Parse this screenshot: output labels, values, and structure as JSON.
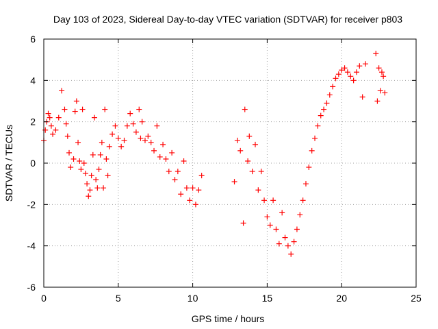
{
  "chart_data": {
    "type": "scatter",
    "title": "Day 103 of 2023, Sidereal Day-to-day VTEC variation (SDTVAR) for receiver p803",
    "xlabel": "GPS time / hours",
    "ylabel": "SDTVAR / TECUs",
    "xlim": [
      0,
      25
    ],
    "ylim": [
      -6,
      6
    ],
    "xticks": [
      0,
      5,
      10,
      15,
      20,
      25
    ],
    "yticks": [
      -6,
      -4,
      -2,
      0,
      2,
      4,
      6
    ],
    "grid": true,
    "marker": "+",
    "color": "#ff0000",
    "series": [
      {
        "name": "p803",
        "points": [
          [
            0.0,
            1.1
          ],
          [
            0.1,
            1.6
          ],
          [
            0.2,
            2.0
          ],
          [
            0.3,
            2.4
          ],
          [
            0.4,
            2.2
          ],
          [
            0.5,
            1.8
          ],
          [
            0.6,
            1.4
          ],
          [
            0.8,
            1.6
          ],
          [
            1.0,
            2.2
          ],
          [
            1.2,
            3.5
          ],
          [
            1.4,
            2.6
          ],
          [
            1.5,
            1.9
          ],
          [
            1.6,
            1.3
          ],
          [
            1.7,
            0.5
          ],
          [
            1.8,
            -0.2
          ],
          [
            2.0,
            0.2
          ],
          [
            2.1,
            2.5
          ],
          [
            2.2,
            3.0
          ],
          [
            2.3,
            1.0
          ],
          [
            2.4,
            0.1
          ],
          [
            2.5,
            -0.3
          ],
          [
            2.6,
            2.6
          ],
          [
            2.7,
            0.0
          ],
          [
            2.8,
            -0.5
          ],
          [
            2.9,
            -1.0
          ],
          [
            3.0,
            -1.6
          ],
          [
            3.1,
            -1.3
          ],
          [
            3.2,
            -0.6
          ],
          [
            3.3,
            0.4
          ],
          [
            3.4,
            2.2
          ],
          [
            3.5,
            -0.8
          ],
          [
            3.6,
            -1.2
          ],
          [
            3.7,
            -0.3
          ],
          [
            3.8,
            0.4
          ],
          [
            3.9,
            1.0
          ],
          [
            4.0,
            -1.2
          ],
          [
            4.1,
            2.6
          ],
          [
            4.2,
            0.2
          ],
          [
            4.3,
            -0.6
          ],
          [
            4.4,
            0.8
          ],
          [
            4.6,
            1.4
          ],
          [
            4.8,
            1.8
          ],
          [
            5.0,
            1.2
          ],
          [
            5.2,
            0.8
          ],
          [
            5.4,
            1.1
          ],
          [
            5.6,
            1.8
          ],
          [
            5.8,
            2.4
          ],
          [
            6.0,
            1.9
          ],
          [
            6.2,
            1.5
          ],
          [
            6.4,
            2.6
          ],
          [
            6.5,
            1.2
          ],
          [
            6.6,
            2.0
          ],
          [
            6.8,
            1.1
          ],
          [
            7.0,
            1.3
          ],
          [
            7.2,
            1.0
          ],
          [
            7.4,
            0.6
          ],
          [
            7.6,
            1.8
          ],
          [
            7.8,
            0.3
          ],
          [
            8.0,
            0.9
          ],
          [
            8.2,
            0.2
          ],
          [
            8.4,
            -0.4
          ],
          [
            8.6,
            0.5
          ],
          [
            8.8,
            -0.8
          ],
          [
            9.0,
            -0.4
          ],
          [
            9.2,
            -1.5
          ],
          [
            9.4,
            0.1
          ],
          [
            9.6,
            -1.2
          ],
          [
            9.8,
            -1.8
          ],
          [
            10.0,
            -1.2
          ],
          [
            10.2,
            -2.0
          ],
          [
            10.4,
            -1.3
          ],
          [
            10.6,
            -0.6
          ],
          [
            12.8,
            -0.9
          ],
          [
            13.0,
            1.1
          ],
          [
            13.2,
            0.6
          ],
          [
            13.4,
            -2.9
          ],
          [
            13.5,
            2.6
          ],
          [
            13.7,
            0.1
          ],
          [
            13.8,
            1.3
          ],
          [
            14.0,
            -0.4
          ],
          [
            14.2,
            0.9
          ],
          [
            14.4,
            -1.3
          ],
          [
            14.6,
            -0.4
          ],
          [
            14.8,
            -1.8
          ],
          [
            15.0,
            -2.6
          ],
          [
            15.2,
            -3.0
          ],
          [
            15.4,
            -1.8
          ],
          [
            15.6,
            -3.2
          ],
          [
            15.8,
            -3.9
          ],
          [
            16.0,
            -2.4
          ],
          [
            16.2,
            -3.6
          ],
          [
            16.4,
            -4.0
          ],
          [
            16.6,
            -4.4
          ],
          [
            16.8,
            -3.8
          ],
          [
            17.0,
            -3.2
          ],
          [
            17.2,
            -2.5
          ],
          [
            17.4,
            -1.8
          ],
          [
            17.6,
            -1.0
          ],
          [
            17.8,
            -0.2
          ],
          [
            18.0,
            0.6
          ],
          [
            18.2,
            1.2
          ],
          [
            18.4,
            1.8
          ],
          [
            18.6,
            2.3
          ],
          [
            18.8,
            2.6
          ],
          [
            19.0,
            2.9
          ],
          [
            19.2,
            3.3
          ],
          [
            19.4,
            3.7
          ],
          [
            19.6,
            4.1
          ],
          [
            19.8,
            4.3
          ],
          [
            20.0,
            4.5
          ],
          [
            20.2,
            4.6
          ],
          [
            20.4,
            4.4
          ],
          [
            20.6,
            4.2
          ],
          [
            20.8,
            4.0
          ],
          [
            21.0,
            4.4
          ],
          [
            21.2,
            4.7
          ],
          [
            21.4,
            3.2
          ],
          [
            21.6,
            4.8
          ],
          [
            22.3,
            5.3
          ],
          [
            22.4,
            3.0
          ],
          [
            22.5,
            4.6
          ],
          [
            22.6,
            3.5
          ],
          [
            22.7,
            4.4
          ],
          [
            22.8,
            4.2
          ],
          [
            22.9,
            3.4
          ]
        ]
      }
    ]
  }
}
